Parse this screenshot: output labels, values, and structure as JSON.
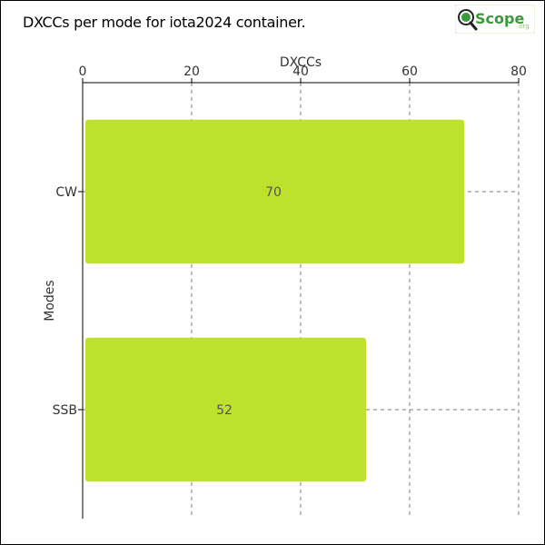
{
  "chart_data": {
    "type": "bar",
    "orientation": "horizontal",
    "title": "DXCCs per mode for iota2024 container.",
    "xlabel": "DXCCs",
    "ylabel": "Modes",
    "categories": [
      "CW",
      "SSB"
    ],
    "values": [
      70,
      52
    ],
    "xlim": [
      0,
      80
    ],
    "xticks": [
      "0",
      "20",
      "40",
      "60",
      "80"
    ],
    "x_axis_position": "top",
    "grid": true,
    "bar_color": "#bde12d"
  },
  "logo": {
    "text": "Scope",
    "suffix": ".org"
  }
}
